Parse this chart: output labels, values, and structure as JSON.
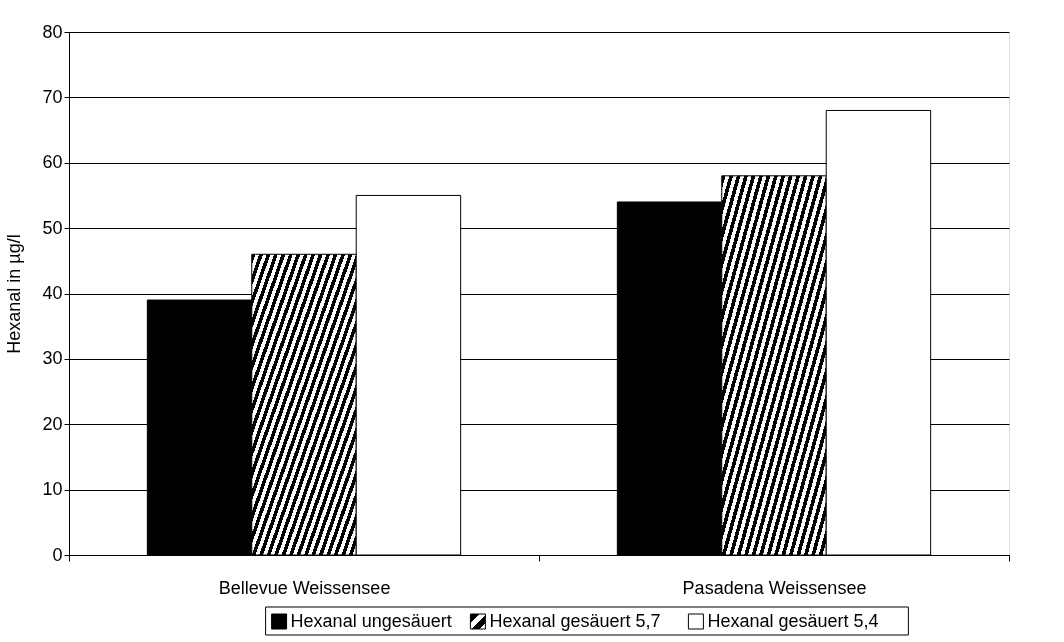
{
  "chart_data": {
    "type": "bar",
    "ylabel": "Hexanal in µg/l",
    "categories": [
      "Bellevue Weissensee",
      "Pasadena Weissensee"
    ],
    "series": [
      {
        "name": "Hexanal ungesäuert",
        "color": "#000000",
        "values": [
          39,
          54
        ]
      },
      {
        "name": "Hexanal gesäuert 5,7",
        "color": "#000000",
        "values": [
          46,
          58
        ]
      },
      {
        "name": "Hexanal gesäuert 5,4",
        "color": "#ffffff",
        "values": [
          55,
          68
        ]
      }
    ],
    "ylim": [
      0,
      80
    ],
    "yticks": [
      0,
      10,
      20,
      30,
      40,
      50,
      60,
      70,
      80
    ],
    "grid": "y",
    "legend": "bottom"
  }
}
